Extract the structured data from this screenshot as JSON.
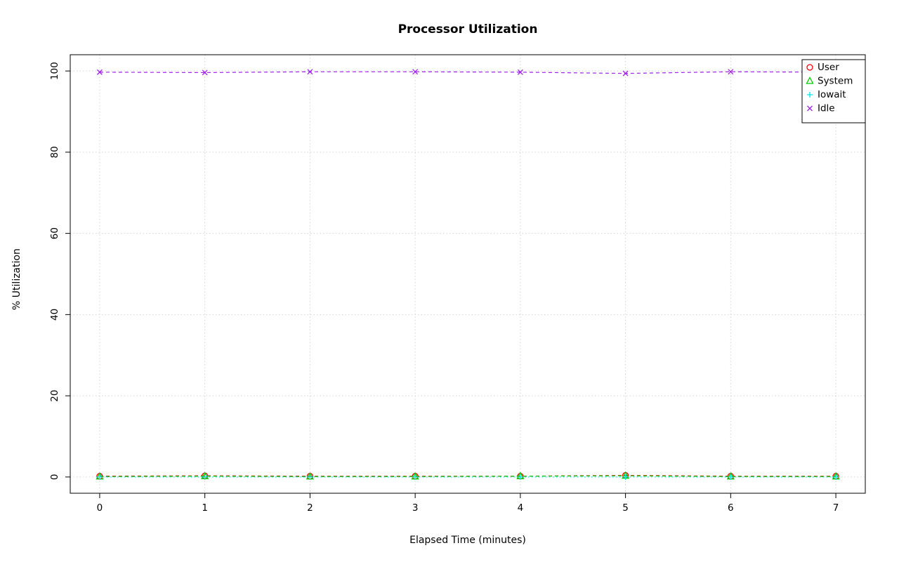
{
  "chart_data": {
    "type": "line",
    "title": "Processor Utilization",
    "xlabel": "Elapsed Time (minutes)",
    "ylabel": "% Utilization",
    "x": [
      0,
      1,
      2,
      3,
      4,
      5,
      6,
      7
    ],
    "xlim": [
      0,
      7
    ],
    "ylim": [
      0,
      100
    ],
    "xticks": [
      0,
      1,
      2,
      3,
      4,
      5,
      6,
      7
    ],
    "yticks": [
      0,
      20,
      40,
      60,
      80,
      100
    ],
    "grid": true,
    "grid_color": "#d3d3d3",
    "grid_style": "dotted",
    "legend_position": "top-right",
    "series": [
      {
        "name": "User",
        "color": "#ff0000",
        "marker": "circle",
        "linestyle": "dashed",
        "values": [
          0.2,
          0.3,
          0.2,
          0.2,
          0.2,
          0.4,
          0.2,
          0.2
        ]
      },
      {
        "name": "System",
        "color": "#00cd00",
        "marker": "triangle",
        "linestyle": "dashed",
        "values": [
          0.1,
          0.2,
          0.1,
          0.1,
          0.2,
          0.3,
          0.1,
          0.1
        ]
      },
      {
        "name": "Iowait",
        "color": "#00e5e5",
        "marker": "plus",
        "linestyle": "dotted",
        "values": [
          0.0,
          0.0,
          0.0,
          0.0,
          0.0,
          0.0,
          0.0,
          0.0
        ]
      },
      {
        "name": "Idle",
        "color": "#a020f0",
        "marker": "x",
        "linestyle": "dashed",
        "values": [
          99.7,
          99.6,
          99.8,
          99.8,
          99.7,
          99.4,
          99.8,
          99.7
        ]
      }
    ]
  }
}
